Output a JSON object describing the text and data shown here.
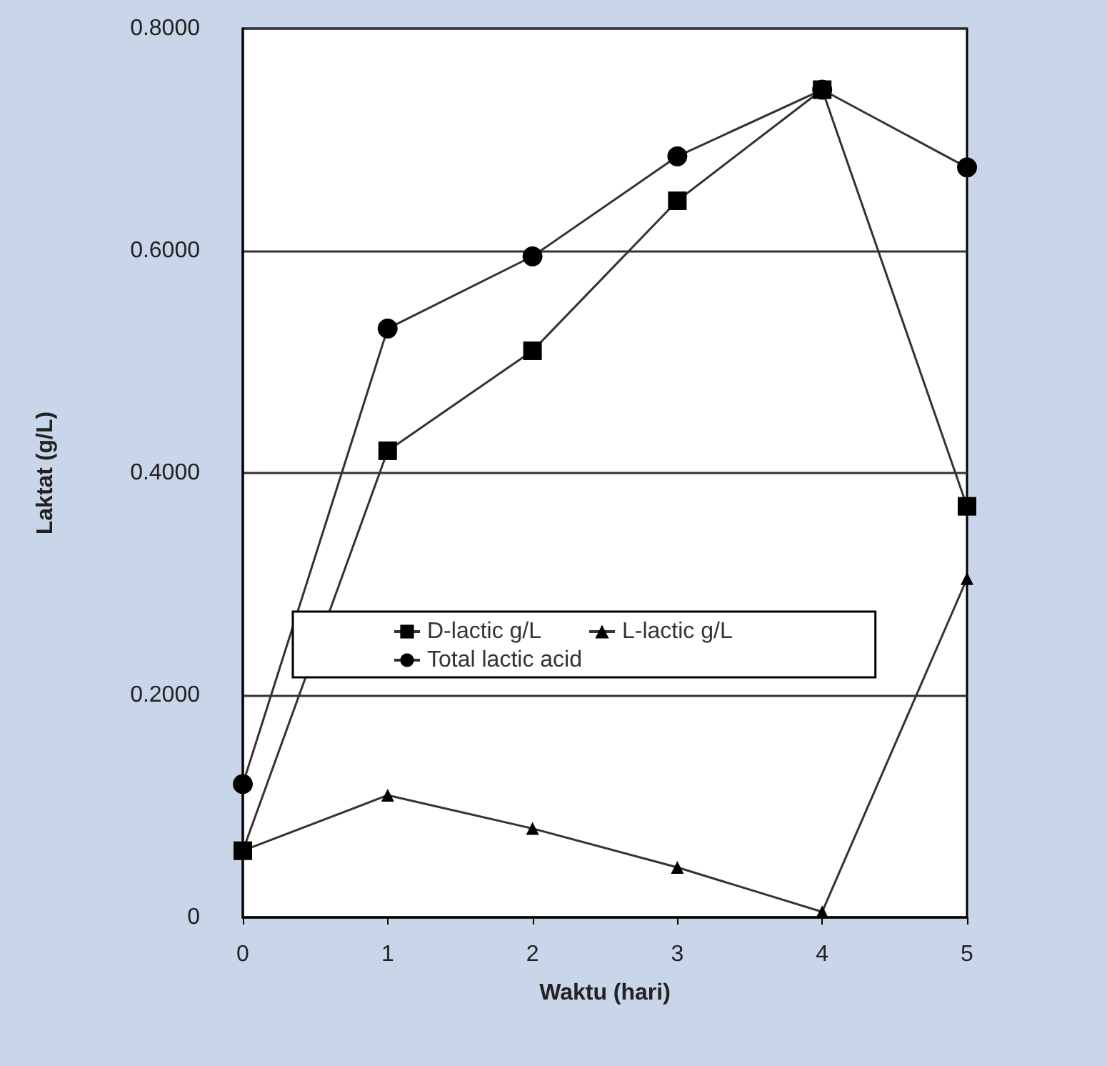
{
  "chart_data": {
    "type": "line",
    "xlabel": "Waktu (hari)",
    "ylabel": "Laktat (g/L)",
    "x": [
      0,
      1,
      2,
      3,
      4,
      5
    ],
    "series": [
      {
        "name": "D-lactic g/L",
        "color": "#333333",
        "marker": "square",
        "values": [
          0.06,
          0.42,
          0.51,
          0.645,
          0.745,
          0.37
        ]
      },
      {
        "name": "Total lactic acid",
        "color": "#333333",
        "marker": "circle",
        "values": [
          0.12,
          0.53,
          0.595,
          0.685,
          0.745,
          0.675
        ]
      },
      {
        "name": "L-lactic g/L",
        "color": "#333333",
        "marker": "triangle",
        "values": [
          0.06,
          0.11,
          0.08,
          0.045,
          0.005,
          0.305
        ]
      }
    ],
    "xlim": [
      0,
      5
    ],
    "xticks": [
      0,
      1,
      2,
      3,
      4,
      5
    ],
    "ylim": [
      0,
      0.8
    ],
    "yticks": [
      0,
      {
        "value": 0.2,
        "label": "0.2000"
      },
      {
        "value": 0.4,
        "label": "0.4000"
      },
      {
        "value": 0.6,
        "label": "0.6000"
      },
      {
        "value": 0.8,
        "label": "0.8000"
      }
    ],
    "grid": "y",
    "legend": "center",
    "line_style": "solid"
  }
}
